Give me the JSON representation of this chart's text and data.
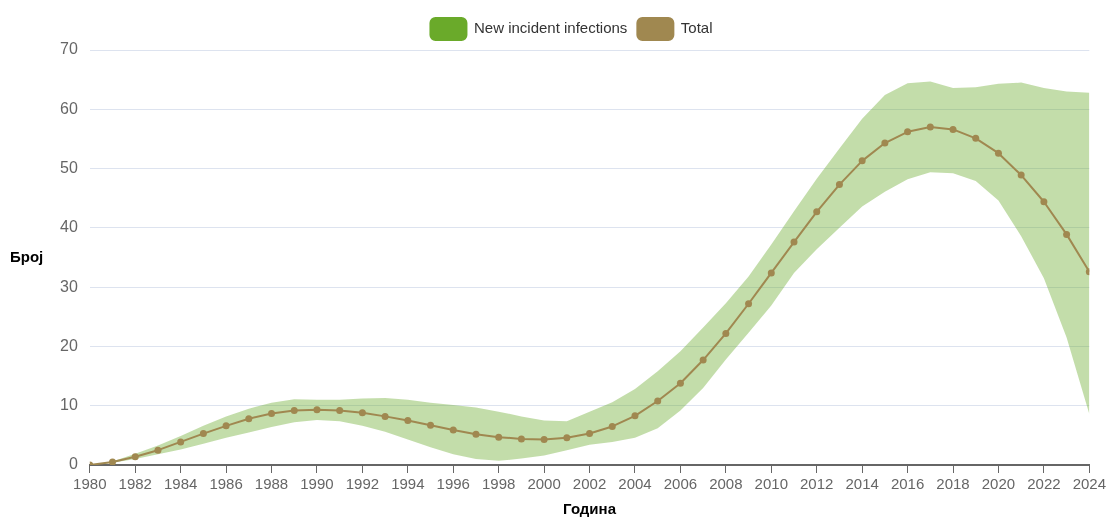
{
  "chart_data": {
    "type": "line",
    "xlabel": "Година",
    "ylabel": "Број",
    "x": [
      1980,
      1981,
      1982,
      1983,
      1984,
      1985,
      1986,
      1987,
      1988,
      1989,
      1990,
      1991,
      1992,
      1993,
      1994,
      1995,
      1996,
      1997,
      1998,
      1999,
      2000,
      2001,
      2002,
      2003,
      2004,
      2005,
      2006,
      2007,
      2008,
      2009,
      2010,
      2011,
      2012,
      2013,
      2014,
      2015,
      2016,
      2017,
      2018,
      2019,
      2020,
      2021,
      2022,
      2023,
      2024
    ],
    "series": [
      {
        "name": "New incident infections",
        "color": "#6aaa2a",
        "values": [
          null,
          null,
          null,
          null,
          null,
          null,
          null,
          null,
          null,
          null,
          null,
          null,
          null,
          null,
          null,
          null,
          null,
          null,
          null,
          null,
          null,
          null,
          null,
          null,
          null,
          null,
          null,
          null,
          null,
          null,
          null,
          null,
          null,
          null,
          null,
          null,
          null,
          null,
          null,
          null,
          null,
          null,
          null,
          null,
          null
        ]
      },
      {
        "name": "Total",
        "color": "#a08850",
        "values": [
          0,
          0.5,
          1.4,
          2.5,
          3.9,
          5.3,
          6.6,
          7.8,
          8.7,
          9.2,
          9.3,
          9.2,
          8.8,
          8.2,
          7.5,
          6.7,
          5.9,
          5.2,
          4.7,
          4.4,
          4.3,
          4.6,
          5.3,
          6.5,
          8.3,
          10.8,
          13.8,
          17.7,
          22.2,
          27.2,
          32.4,
          37.6,
          42.7,
          47.3,
          51.3,
          54.3,
          56.2,
          57.0,
          56.6,
          55.1,
          52.6,
          48.9,
          44.4,
          38.9,
          32.6
        ],
        "lower": [
          0,
          0.4,
          1.0,
          1.8,
          2.6,
          3.6,
          4.6,
          5.5,
          6.4,
          7.2,
          7.6,
          7.4,
          6.6,
          5.6,
          4.3,
          3.0,
          1.8,
          1.0,
          0.7,
          1.1,
          1.6,
          2.5,
          3.4,
          3.9,
          4.6,
          6.2,
          9.2,
          13.0,
          17.8,
          22.3,
          26.9,
          32.4,
          36.4,
          40.0,
          43.6,
          46.1,
          48.2,
          49.4,
          49.2,
          47.9,
          44.6,
          38.6,
          31.5,
          21.5,
          8.6
        ],
        "upper": [
          0,
          0.6,
          1.9,
          3.3,
          4.9,
          6.6,
          8.2,
          9.5,
          10.5,
          11.1,
          11.0,
          11.0,
          11.2,
          11.3,
          11.0,
          10.5,
          10.1,
          9.7,
          9.0,
          8.2,
          7.5,
          7.4,
          9.0,
          10.6,
          12.8,
          15.8,
          19.2,
          23.2,
          27.3,
          31.8,
          37.2,
          42.8,
          48.3,
          53.4,
          58.4,
          62.4,
          64.4,
          64.7,
          63.6,
          63.7,
          64.3,
          64.5,
          63.6,
          63.0,
          62.8
        ]
      }
    ],
    "xlim": [
      1980,
      2024
    ],
    "xticks": [
      1980,
      1982,
      1984,
      1986,
      1988,
      1990,
      1992,
      1994,
      1996,
      1998,
      2000,
      2002,
      2004,
      2006,
      2008,
      2010,
      2012,
      2014,
      2016,
      2018,
      2020,
      2022,
      2024
    ],
    "ylim": [
      0,
      70
    ],
    "yticks": [
      0,
      10,
      20,
      30,
      40,
      50,
      60,
      70
    ],
    "grid": "y",
    "legend": "top",
    "marker": "circle",
    "line_style": "solid"
  }
}
